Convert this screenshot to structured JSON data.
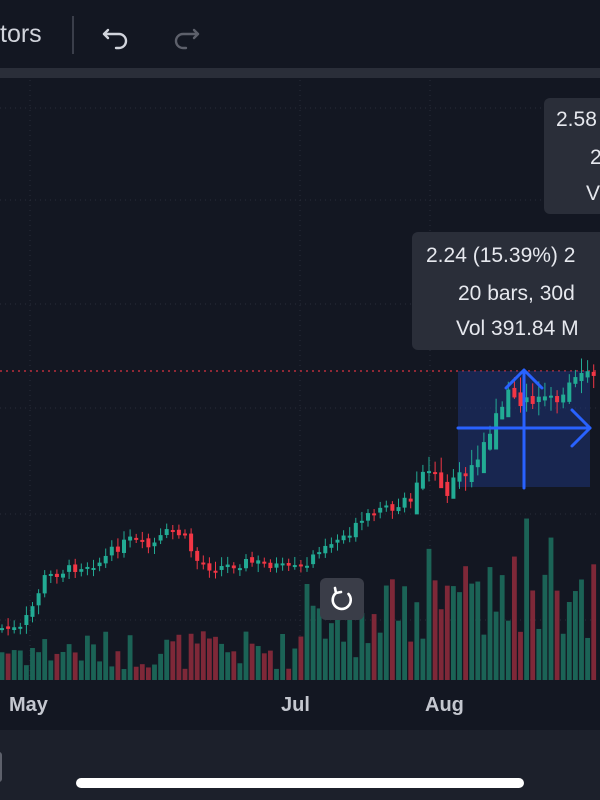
{
  "toolbar": {
    "indicators_label": "tors",
    "undo_icon": "undo-icon",
    "redo_icon": "redo-icon"
  },
  "x_axis": {
    "labels": [
      "May",
      "Jul",
      "Aug"
    ]
  },
  "measure_tooltip": {
    "change": "2.24 (15.39%) 2",
    "bars": "20 bars, 30d",
    "volume": "Vol 391.84 M"
  },
  "price_tooltip": {
    "price": "2.58",
    "line2": "2",
    "line3": "V"
  },
  "reset_button": {
    "icon": "reset-icon"
  },
  "colors": {
    "background": "#131722",
    "up": "#22ab94",
    "down": "#f23645",
    "measure_fill": "#1e3a8a",
    "measure_arrow": "#2962ff"
  }
}
